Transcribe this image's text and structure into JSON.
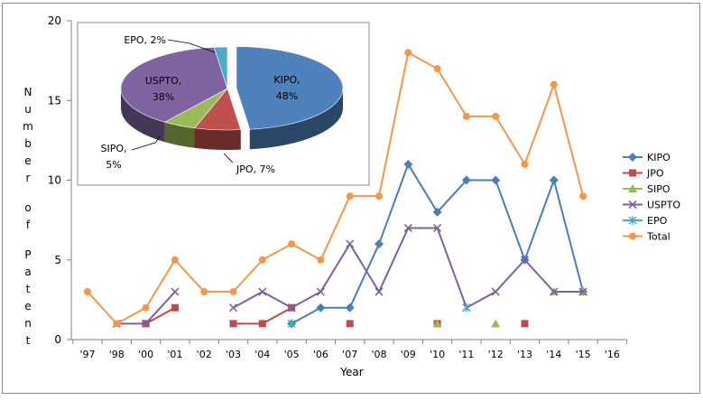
{
  "chart_data": [
    {
      "type": "line",
      "xlabel": "Year",
      "ylabel": "Number of Patent",
      "ylim": [
        0,
        20
      ],
      "yticks": [
        0,
        5,
        10,
        15,
        20
      ],
      "categories": [
        "'97",
        "'98",
        "'00",
        "'01",
        "'02",
        "'03",
        "'04",
        "'05",
        "'06",
        "'07",
        "'08",
        "'09",
        "'10",
        "'11",
        "'12",
        "'13",
        "'14",
        "'15",
        "'16"
      ],
      "grid": false,
      "legend_position": "right",
      "series": [
        {
          "name": "KIPO",
          "color": "#4a7ebb",
          "marker": "diamond",
          "values": [
            null,
            null,
            null,
            null,
            null,
            null,
            null,
            1,
            2,
            2,
            6,
            11,
            8,
            10,
            10,
            5,
            10,
            3,
            null
          ]
        },
        {
          "name": "JPO",
          "color": "#be4b48",
          "marker": "square",
          "values": [
            null,
            null,
            1,
            2,
            null,
            1,
            1,
            2,
            null,
            1,
            null,
            null,
            1,
            null,
            null,
            1,
            null,
            null,
            null
          ]
        },
        {
          "name": "SIPO",
          "color": "#98b954",
          "marker": "triangle",
          "values": [
            null,
            null,
            null,
            null,
            null,
            null,
            null,
            null,
            null,
            null,
            null,
            null,
            1,
            null,
            1,
            null,
            3,
            3,
            null
          ]
        },
        {
          "name": "USPTO",
          "color": "#7d60a0",
          "marker": "x",
          "values": [
            null,
            1,
            1,
            3,
            null,
            2,
            3,
            2,
            3,
            6,
            3,
            7,
            7,
            2,
            3,
            5,
            3,
            3,
            null
          ]
        },
        {
          "name": "EPO",
          "color": "#46aac5",
          "marker": "star",
          "values": [
            null,
            null,
            null,
            null,
            null,
            null,
            null,
            1,
            null,
            null,
            null,
            null,
            null,
            2,
            null,
            null,
            null,
            null,
            null
          ]
        },
        {
          "name": "Total",
          "color": "#f79646",
          "marker": "circle",
          "values": [
            3,
            1,
            2,
            5,
            3,
            3,
            5,
            6,
            5,
            9,
            9,
            18,
            17,
            14,
            14,
            11,
            16,
            9,
            null
          ]
        }
      ]
    },
    {
      "type": "pie",
      "slices": [
        {
          "label": "KIPO",
          "value": 48,
          "text": "KIPO,\n48%",
          "color": "#4f81bd"
        },
        {
          "label": "JPO",
          "value": 7,
          "text": "JPO, 7%",
          "color": "#c0504d"
        },
        {
          "label": "SIPO",
          "value": 5,
          "text": "SIPO,\n5%",
          "color": "#9bbb59"
        },
        {
          "label": "USPTO",
          "value": 38,
          "text": "USPTO,\n38%",
          "color": "#8064a2"
        },
        {
          "label": "EPO",
          "value": 2,
          "text": "EPO, 2%",
          "color": "#4bacc6"
        }
      ]
    }
  ]
}
